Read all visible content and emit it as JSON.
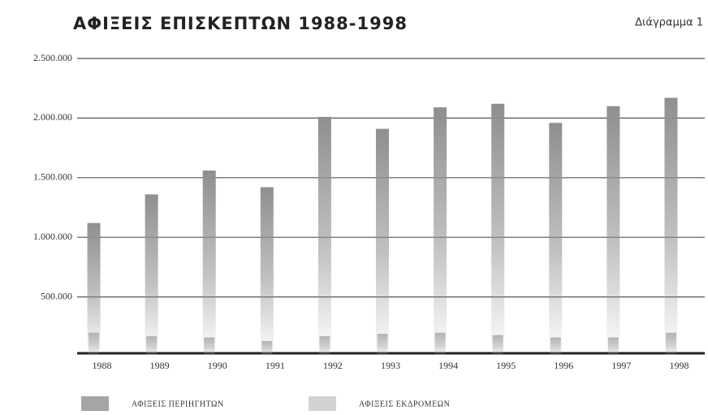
{
  "chart_data": {
    "type": "bar",
    "title": "ΑΦΙΞΕΙΣ ΕΠΙΣΚΕΠΤΩΝ 1988-1998",
    "subtitle": "Διάγραμμα 1",
    "categories": [
      "1988",
      "1989",
      "1990",
      "1991",
      "1992",
      "1993",
      "1994",
      "1995",
      "1996",
      "1997",
      "1998"
    ],
    "series": [
      {
        "name": "ΑΦΙΞΕΙΣ ΠΕΡΙΗΓΗΤΩΝ",
        "color": "#8f8f8f",
        "values": [
          1120000,
          1360000,
          1560000,
          1420000,
          2010000,
          1910000,
          2090000,
          2120000,
          1960000,
          2100000,
          2170000
        ]
      },
      {
        "name": "ΑΦΙΞΕΙΣ ΕΚΔΡΟΜΕΩΝ",
        "color": "#b4b4b4",
        "values": [
          200000,
          170000,
          160000,
          130000,
          170000,
          190000,
          200000,
          180000,
          160000,
          160000,
          200000
        ]
      }
    ],
    "ylim": [
      0,
      2500000
    ],
    "yticks": [
      {
        "value": 500000,
        "label": "500.000"
      },
      {
        "value": 1000000,
        "label": "1.000.000"
      },
      {
        "value": 1500000,
        "label": "1.500.000"
      },
      {
        "value": 2000000,
        "label": "2.000.000"
      },
      {
        "value": 2500000,
        "label": "2.500.000"
      }
    ],
    "grid": true
  }
}
